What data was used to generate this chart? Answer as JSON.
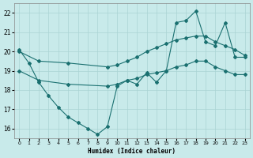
{
  "xlabel": "Humidex (Indice chaleur)",
  "bg_color": "#c8eaea",
  "grid_color": "#aad4d4",
  "line_color": "#1a7070",
  "xlim": [
    -0.5,
    23.5
  ],
  "ylim": [
    15.5,
    22.5
  ],
  "yticks": [
    16,
    17,
    18,
    19,
    20,
    21,
    22
  ],
  "xticks": [
    0,
    1,
    2,
    3,
    4,
    5,
    6,
    7,
    8,
    9,
    10,
    11,
    12,
    13,
    14,
    15,
    16,
    17,
    18,
    19,
    20,
    21,
    22,
    23
  ],
  "line1_x": [
    0,
    1,
    2,
    3,
    4,
    5,
    6,
    7,
    8,
    9,
    10,
    11,
    12,
    13,
    14,
    15,
    16,
    17,
    18,
    19,
    20,
    21,
    22,
    23
  ],
  "line1_y": [
    20.1,
    19.4,
    18.4,
    17.7,
    17.1,
    16.6,
    16.3,
    16.0,
    15.7,
    16.1,
    18.2,
    18.5,
    18.3,
    18.9,
    18.4,
    19.0,
    21.5,
    21.6,
    22.1,
    20.5,
    20.3,
    21.5,
    19.7,
    19.7
  ],
  "line2_x": [
    0,
    2,
    5,
    9,
    10,
    11,
    12,
    13,
    14,
    15,
    16,
    17,
    18,
    19,
    20,
    21,
    22,
    23
  ],
  "line2_y": [
    20.0,
    19.5,
    19.4,
    19.2,
    19.3,
    19.5,
    19.7,
    20.0,
    20.2,
    20.4,
    20.6,
    20.7,
    20.8,
    20.8,
    20.5,
    20.3,
    20.1,
    19.8
  ],
  "line3_x": [
    0,
    2,
    5,
    9,
    10,
    11,
    12,
    13,
    14,
    15,
    16,
    17,
    18,
    19,
    20,
    21,
    22,
    23
  ],
  "line3_y": [
    19.0,
    18.5,
    18.3,
    18.2,
    18.3,
    18.5,
    18.6,
    18.8,
    18.9,
    19.0,
    19.2,
    19.3,
    19.5,
    19.5,
    19.2,
    19.0,
    18.8,
    18.8
  ]
}
